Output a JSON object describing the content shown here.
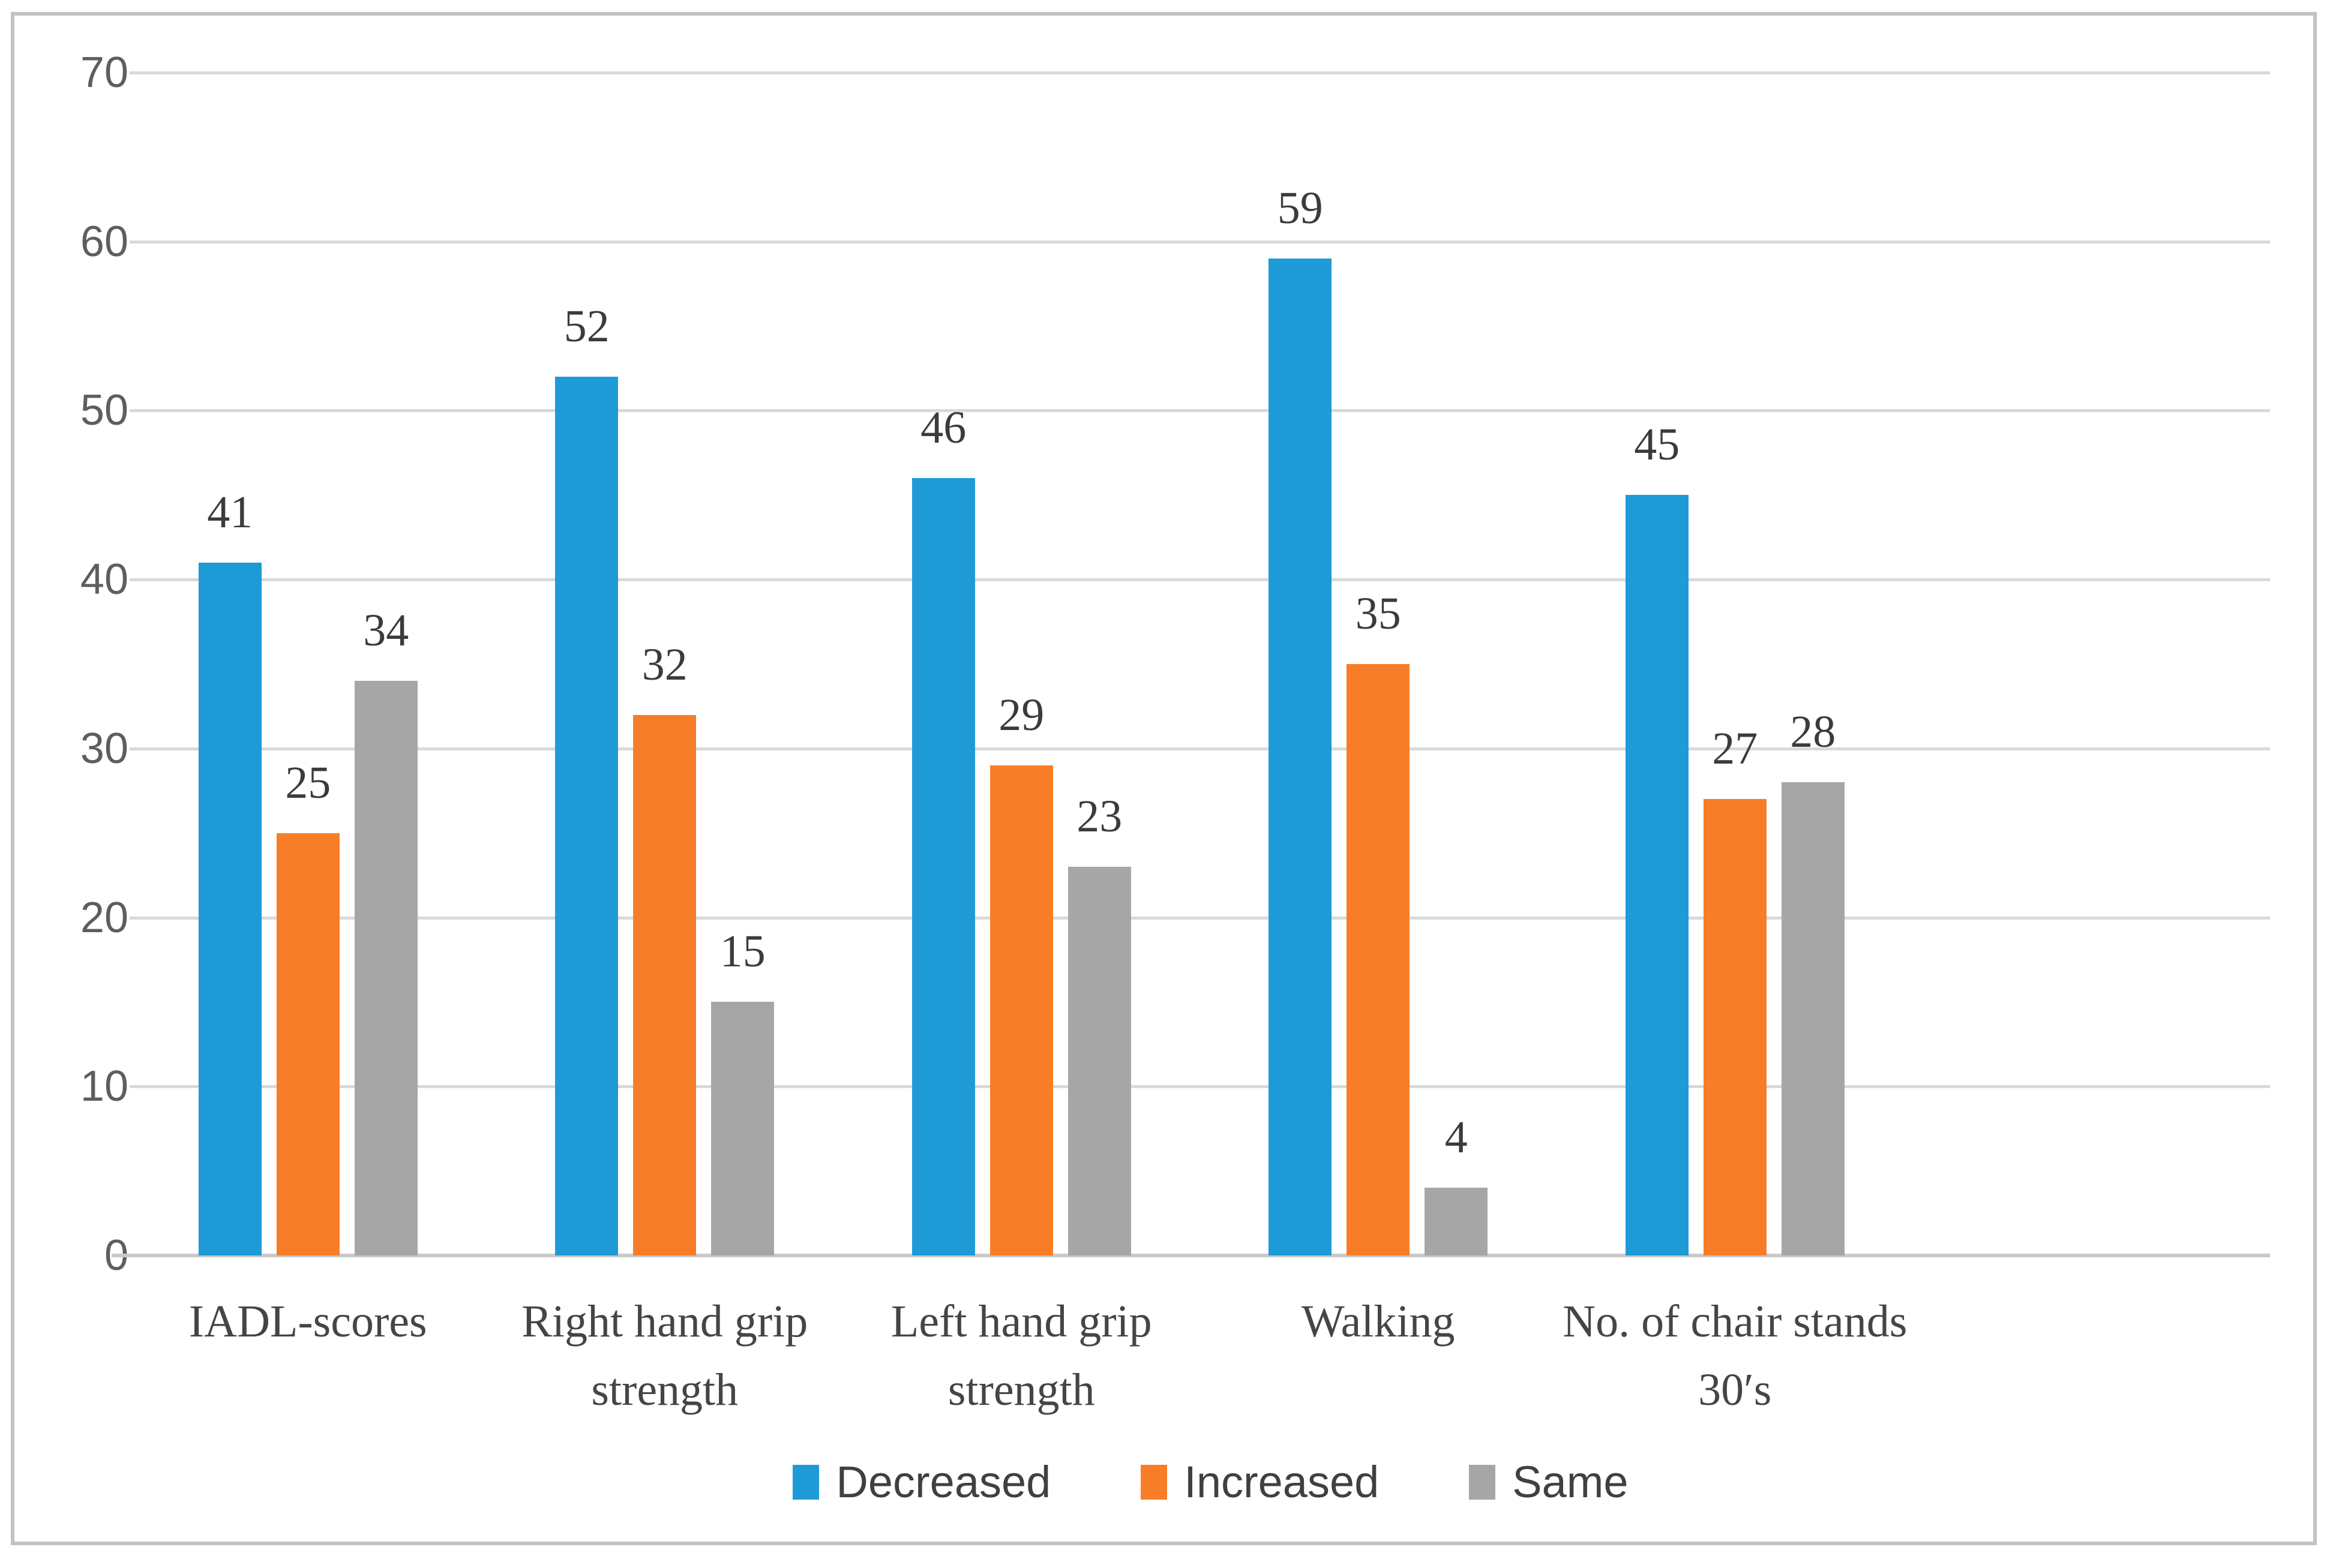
{
  "chart_data": {
    "type": "bar",
    "categories": [
      "IADL-scores",
      "Right hand grip strength",
      "Left hand grip strength",
      "Walking",
      "No. of chair stands 30′s"
    ],
    "series": [
      {
        "name": "Decreased",
        "color": "#1e9bd7",
        "values": [
          41,
          52,
          46,
          59,
          45
        ]
      },
      {
        "name": "Increased",
        "color": "#f87d28",
        "values": [
          25,
          32,
          29,
          35,
          27
        ]
      },
      {
        "name": "Same",
        "color": "#a6a6a6",
        "values": [
          34,
          15,
          23,
          4,
          28
        ]
      }
    ],
    "title": "",
    "xlabel": "",
    "ylabel": "",
    "ylim": [
      0,
      70
    ],
    "ytick_step": 10,
    "y_tick_labels": [
      "0",
      "10",
      "20",
      "30",
      "40",
      "50",
      "60",
      "70"
    ],
    "grid": true,
    "legend_position": "bottom-center",
    "data_labels": true,
    "empty_trailing_category_slots": 1
  },
  "colors": {
    "background": "#ffffff",
    "frame_border": "#c3c3c3",
    "gridline": "#d9d9d9",
    "axis_line": "#c9c9c9",
    "tick_label": "#5e5e5e",
    "data_label": "#3b3b3b",
    "category_label": "#454545",
    "legend_label": "#404040"
  }
}
